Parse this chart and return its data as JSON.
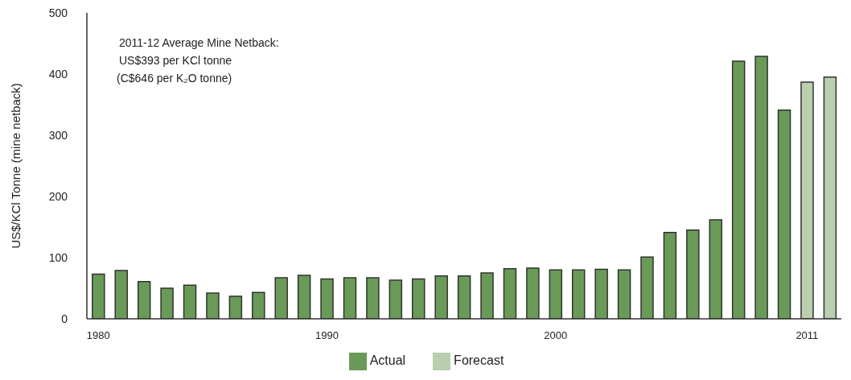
{
  "chart_data": {
    "type": "bar",
    "ylabel": "US$/KCl Tonne (mine netback)",
    "annotations": [
      "2011-12 Average Mine Netback:\nUS$393 per KCl tonne\n(C$646 per K₂O tonne)"
    ],
    "categories": [
      "1980",
      null,
      null,
      null,
      null,
      null,
      null,
      null,
      null,
      null,
      "1990",
      null,
      null,
      null,
      null,
      null,
      null,
      null,
      null,
      null,
      "2000",
      null,
      null,
      null,
      null,
      null,
      null,
      null,
      null,
      null,
      null,
      "2011",
      null
    ],
    "stacked": true,
    "series": [
      {
        "name": "Actual",
        "color": "#6a9a58",
        "values": [
          73,
          79,
          61,
          50,
          55,
          42,
          37,
          43,
          67,
          71,
          65,
          67,
          67,
          63,
          65,
          70,
          70,
          75,
          82,
          83,
          80,
          80,
          81,
          80,
          101,
          141,
          145,
          162,
          421,
          429,
          341,
          null,
          null
        ]
      },
      {
        "name": "Forecast",
        "color": "#b9cfaf",
        "values": [
          null,
          null,
          null,
          null,
          null,
          null,
          null,
          null,
          null,
          null,
          null,
          null,
          null,
          null,
          null,
          null,
          null,
          null,
          null,
          null,
          null,
          null,
          null,
          null,
          null,
          null,
          null,
          null,
          null,
          null,
          null,
          387,
          395
        ]
      }
    ],
    "ylim": [
      0,
      500
    ],
    "yticks": [
      0,
      100,
      200,
      300,
      400,
      500
    ],
    "grid": false,
    "legend": "bottom"
  }
}
